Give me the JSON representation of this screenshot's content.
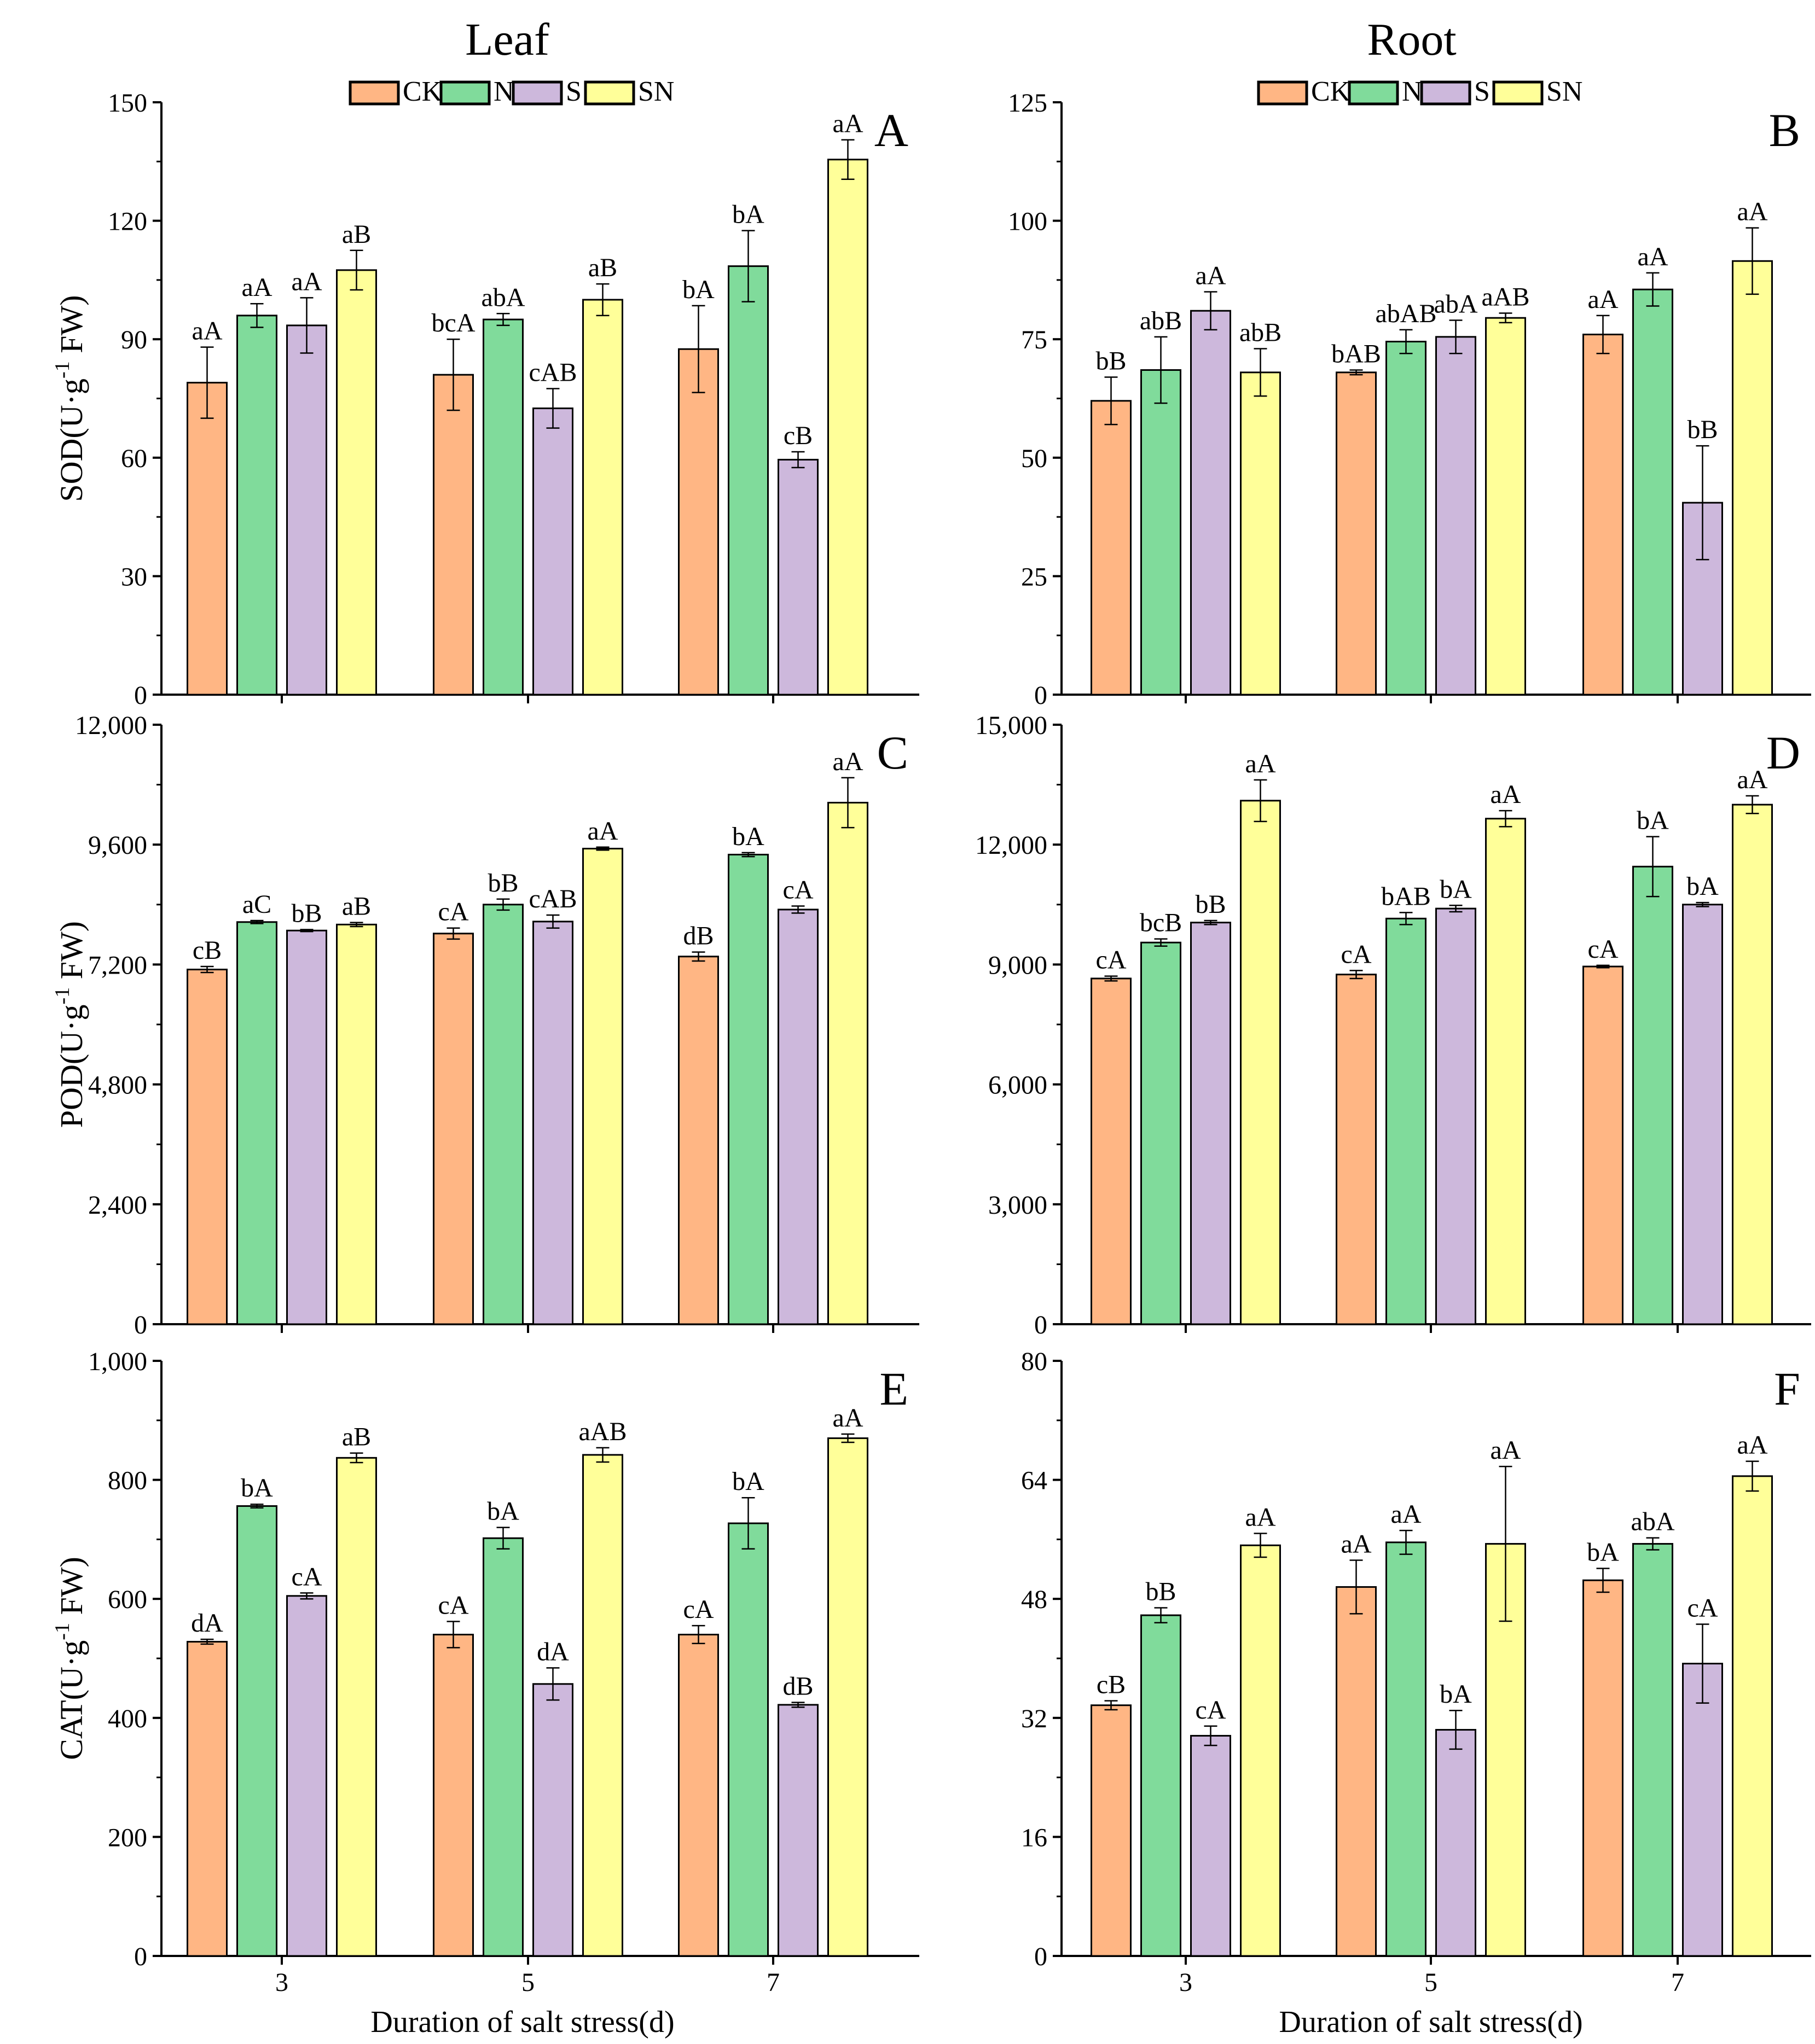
{
  "titles": {
    "leaf": "Leaf",
    "root": "Root"
  },
  "xlabel": "Duration of salt stress(d)",
  "legend": [
    {
      "name": "CK",
      "color": "#FFB684"
    },
    {
      "name": "N",
      "color": "#80DB9B"
    },
    {
      "name": "S",
      "color": "#CDB8DC"
    },
    {
      "name": "SN",
      "color": "#FFFF99"
    }
  ],
  "chart_data": [
    {
      "panel": "A",
      "type": "bar",
      "column": "leaf",
      "row": 0,
      "ylabel": {
        "pre": "SOD(U·g",
        "sup": "-1",
        "post": " FW)"
      },
      "ylim": [
        0,
        150
      ],
      "ticks": [
        "0",
        "30",
        "60",
        "90",
        "120",
        "150"
      ],
      "categories": [
        "3",
        "5",
        "7"
      ],
      "show_x_ticks": false,
      "series": [
        {
          "name": "CK",
          "values": [
            79,
            81,
            87.5
          ],
          "errors": [
            9,
            9,
            11
          ],
          "labels": [
            "aA",
            "bcA",
            "bA"
          ]
        },
        {
          "name": "N",
          "values": [
            96,
            95,
            108.5
          ],
          "errors": [
            3,
            1.5,
            9
          ],
          "labels": [
            "aA",
            "abA",
            "bA"
          ]
        },
        {
          "name": "S",
          "values": [
            93.5,
            72.5,
            59.5
          ],
          "errors": [
            7,
            5,
            2
          ],
          "labels": [
            "aA",
            "cAB",
            "cB"
          ]
        },
        {
          "name": "SN",
          "values": [
            107.5,
            100,
            135.5
          ],
          "errors": [
            5,
            4,
            5
          ],
          "labels": [
            "aB",
            "aB",
            "aA"
          ]
        }
      ]
    },
    {
      "panel": "B",
      "type": "bar",
      "column": "root",
      "row": 0,
      "ylabel": null,
      "ylim": [
        0,
        125
      ],
      "ticks": [
        "0",
        "25",
        "50",
        "75",
        "100",
        "125"
      ],
      "categories": [
        "3",
        "5",
        "7"
      ],
      "show_x_ticks": false,
      "series": [
        {
          "name": "CK",
          "values": [
            62,
            68,
            76
          ],
          "errors": [
            5,
            0.5,
            4
          ],
          "labels": [
            "bB",
            "bAB",
            "aA"
          ]
        },
        {
          "name": "N",
          "values": [
            68.5,
            74.5,
            85.5
          ],
          "errors": [
            7,
            2.5,
            3.5
          ],
          "labels": [
            "abB",
            "abAB",
            "aA"
          ]
        },
        {
          "name": "S",
          "values": [
            81,
            75.5,
            40.5
          ],
          "errors": [
            4,
            3.5,
            12
          ],
          "labels": [
            "aA",
            "abA",
            "bB"
          ]
        },
        {
          "name": "SN",
          "values": [
            68,
            79.5,
            91.5
          ],
          "errors": [
            5,
            1,
            7
          ],
          "labels": [
            "abB",
            "aAB",
            "aA"
          ]
        }
      ]
    },
    {
      "panel": "C",
      "type": "bar",
      "column": "leaf",
      "row": 1,
      "ylabel": {
        "pre": "POD(U·g",
        "sup": "-1",
        "post": " FW)"
      },
      "ylim": [
        0,
        12000
      ],
      "ticks": [
        "0",
        "2,400",
        "4,800",
        "7,200",
        "9,600",
        "12,000"
      ],
      "categories": [
        "3",
        "5",
        "7"
      ],
      "show_x_ticks": false,
      "series": [
        {
          "name": "CK",
          "values": [
            7100,
            7820,
            7360
          ],
          "errors": [
            60,
            110,
            90
          ],
          "labels": [
            "cB",
            "cA",
            "dB"
          ]
        },
        {
          "name": "N",
          "values": [
            8050,
            8400,
            9400
          ],
          "errors": [
            30,
            110,
            40
          ],
          "labels": [
            "aC",
            "bB",
            "bA"
          ]
        },
        {
          "name": "S",
          "values": [
            7880,
            8060,
            8300
          ],
          "errors": [
            20,
            130,
            70
          ],
          "labels": [
            "bB",
            "cAB",
            "cA"
          ]
        },
        {
          "name": "SN",
          "values": [
            8000,
            9520,
            10440
          ],
          "errors": [
            40,
            30,
            500
          ],
          "labels": [
            "aB",
            "aA",
            "aA"
          ]
        }
      ]
    },
    {
      "panel": "D",
      "type": "bar",
      "column": "root",
      "row": 1,
      "ylabel": null,
      "ylim": [
        0,
        15000
      ],
      "ticks": [
        "0",
        "3,000",
        "6,000",
        "9,000",
        "12,000",
        "15,000"
      ],
      "categories": [
        "3",
        "5",
        "7"
      ],
      "show_x_ticks": false,
      "series": [
        {
          "name": "CK",
          "values": [
            8650,
            8750,
            8950
          ],
          "errors": [
            60,
            100,
            30
          ],
          "labels": [
            "cA",
            "cA",
            "cA"
          ]
        },
        {
          "name": "N",
          "values": [
            9550,
            10150,
            11450
          ],
          "errors": [
            90,
            150,
            750
          ],
          "labels": [
            "bcB",
            "bAB",
            "bA"
          ]
        },
        {
          "name": "S",
          "values": [
            10050,
            10400,
            10500
          ],
          "errors": [
            50,
            80,
            50
          ],
          "labels": [
            "bB",
            "bA",
            "bA"
          ]
        },
        {
          "name": "SN",
          "values": [
            13100,
            12650,
            13000
          ],
          "errors": [
            520,
            200,
            220
          ],
          "labels": [
            "aA",
            "aA",
            "aA"
          ]
        }
      ]
    },
    {
      "panel": "E",
      "type": "bar",
      "column": "leaf",
      "row": 2,
      "ylabel": {
        "pre": "CAT(U·g",
        "sup": "-1",
        "post": " FW)"
      },
      "ylim": [
        0,
        1000
      ],
      "ticks": [
        "0",
        "200",
        "400",
        "600",
        "800",
        "1,000"
      ],
      "categories": [
        "3",
        "5",
        "7"
      ],
      "show_x_ticks": true,
      "series": [
        {
          "name": "CK",
          "values": [
            528,
            540,
            540
          ],
          "errors": [
            4,
            22,
            15
          ],
          "labels": [
            "dA",
            "cA",
            "cA"
          ]
        },
        {
          "name": "N",
          "values": [
            756,
            702,
            727
          ],
          "errors": [
            3,
            18,
            43
          ],
          "labels": [
            "bA",
            "bA",
            "bA"
          ]
        },
        {
          "name": "S",
          "values": [
            605,
            457,
            422
          ],
          "errors": [
            5,
            27,
            4
          ],
          "labels": [
            "cA",
            "dA",
            "dB"
          ]
        },
        {
          "name": "SN",
          "values": [
            837,
            842,
            870
          ],
          "errors": [
            8,
            12,
            7
          ],
          "labels": [
            "aB",
            "aAB",
            "aA"
          ]
        }
      ]
    },
    {
      "panel": "F",
      "type": "bar",
      "column": "root",
      "row": 2,
      "ylabel": null,
      "ylim": [
        0,
        80
      ],
      "ticks": [
        "0",
        "16",
        "32",
        "48",
        "64",
        "80"
      ],
      "categories": [
        "3",
        "5",
        "7"
      ],
      "show_x_ticks": true,
      "series": [
        {
          "name": "CK",
          "values": [
            33.7,
            49.6,
            50.5
          ],
          "errors": [
            0.6,
            3.6,
            1.6
          ],
          "labels": [
            "cB",
            "aA",
            "bA"
          ]
        },
        {
          "name": "N",
          "values": [
            45.8,
            55.6,
            55.4
          ],
          "errors": [
            1,
            1.6,
            0.8
          ],
          "labels": [
            "bB",
            "aA",
            "abA"
          ]
        },
        {
          "name": "S",
          "values": [
            29.6,
            30.4,
            39.3
          ],
          "errors": [
            1.3,
            2.6,
            5.3
          ],
          "labels": [
            "cA",
            "bA",
            "cA"
          ]
        },
        {
          "name": "SN",
          "values": [
            55.2,
            55.4,
            64.5
          ],
          "errors": [
            1.6,
            10.4,
            2
          ],
          "labels": [
            "aA",
            "aA",
            "aA"
          ]
        }
      ]
    }
  ]
}
